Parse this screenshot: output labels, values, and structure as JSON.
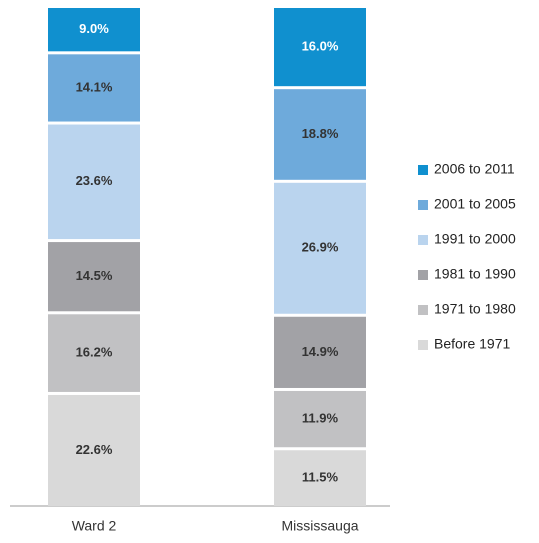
{
  "chart_data": {
    "type": "stacked_bar",
    "categories": [
      "Ward 2",
      "Mississauga"
    ],
    "series": [
      {
        "name": "Before 1971",
        "color": "#d9d9d9",
        "label_color": "#333333",
        "values": [
          22.6,
          11.5
        ],
        "value_labels": [
          "22.6%",
          "11.5%"
        ]
      },
      {
        "name": "1971 to 1980",
        "color": "#c1c1c3",
        "label_color": "#333333",
        "values": [
          16.2,
          11.9
        ],
        "value_labels": [
          "16.2%",
          "11.9%"
        ]
      },
      {
        "name": "1981 to 1990",
        "color": "#a2a2a6",
        "label_color": "#333333",
        "values": [
          14.5,
          14.9
        ],
        "value_labels": [
          "14.5%",
          "14.9%"
        ]
      },
      {
        "name": "1991 to 2000",
        "color": "#bad4ee",
        "label_color": "#333333",
        "values": [
          23.6,
          26.9
        ],
        "value_labels": [
          "23.6%",
          "26.9%"
        ]
      },
      {
        "name": "2001 to 2005",
        "color": "#6eaadb",
        "label_color": "#333333",
        "values": [
          14.1,
          18.8
        ],
        "value_labels": [
          "14.1%",
          "18.8%"
        ]
      },
      {
        "name": "2006 to 2011",
        "color": "#1090cf",
        "label_color": "#ffffff",
        "values": [
          9.0,
          16.0
        ],
        "value_labels": [
          "9.0%",
          "16.0%"
        ]
      }
    ]
  }
}
